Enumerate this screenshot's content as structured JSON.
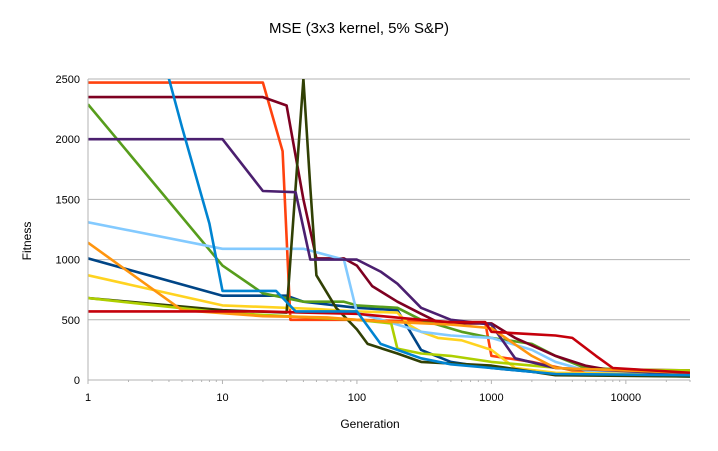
{
  "chart_data": {
    "type": "line",
    "title": "MSE (3x3 kernel, 5% S&P)",
    "xlabel": "Generation",
    "ylabel": "Fitness",
    "xscale": "log",
    "xlim": [
      1,
      30000
    ],
    "ylim": [
      0,
      2500
    ],
    "x_ticks": [
      1,
      10,
      100,
      1000,
      10000
    ],
    "x_tick_labels": [
      "1",
      "10",
      "100",
      "1000",
      "10000"
    ],
    "y_ticks": [
      0,
      500,
      1000,
      1500,
      2000,
      2500
    ],
    "y_tick_labels": [
      "0",
      "500",
      "1000",
      "1500",
      "2000",
      "2500"
    ],
    "grid": "horizontal",
    "legend": "none",
    "series": [
      {
        "color": "#004586",
        "points": [
          [
            1,
            1010
          ],
          [
            10,
            700
          ],
          [
            30,
            700
          ],
          [
            40,
            650
          ],
          [
            100,
            600
          ],
          [
            200,
            580
          ],
          [
            300,
            250
          ],
          [
            500,
            150
          ],
          [
            1000,
            100
          ],
          [
            3000,
            50
          ],
          [
            30000,
            30
          ]
        ]
      },
      {
        "color": "#ff420e",
        "points": [
          [
            1,
            2470
          ],
          [
            20,
            2470
          ],
          [
            28,
            1900
          ],
          [
            32,
            500
          ],
          [
            100,
            500
          ],
          [
            200,
            490
          ],
          [
            500,
            480
          ],
          [
            900,
            480
          ],
          [
            1000,
            200
          ],
          [
            2000,
            150
          ],
          [
            4000,
            80
          ],
          [
            10000,
            70
          ],
          [
            30000,
            60
          ]
        ]
      },
      {
        "color": "#ffd320",
        "points": [
          [
            1,
            870
          ],
          [
            10,
            620
          ],
          [
            50,
            590
          ],
          [
            100,
            570
          ],
          [
            200,
            560
          ],
          [
            250,
            450
          ],
          [
            300,
            400
          ],
          [
            400,
            350
          ],
          [
            600,
            330
          ],
          [
            1000,
            250
          ],
          [
            1500,
            100
          ],
          [
            3000,
            60
          ],
          [
            30000,
            50
          ]
        ]
      },
      {
        "color": "#579d1c",
        "points": [
          [
            1,
            2290
          ],
          [
            10,
            950
          ],
          [
            20,
            720
          ],
          [
            40,
            650
          ],
          [
            80,
            650
          ],
          [
            100,
            620
          ],
          [
            200,
            600
          ],
          [
            300,
            500
          ],
          [
            600,
            400
          ],
          [
            1000,
            350
          ],
          [
            2000,
            300
          ],
          [
            3000,
            200
          ],
          [
            5000,
            100
          ],
          [
            30000,
            70
          ]
        ]
      },
      {
        "color": "#7e0021",
        "points": [
          [
            1,
            2350
          ],
          [
            20,
            2350
          ],
          [
            30,
            2280
          ],
          [
            40,
            1500
          ],
          [
            50,
            1010
          ],
          [
            80,
            1010
          ],
          [
            100,
            950
          ],
          [
            130,
            780
          ],
          [
            200,
            650
          ],
          [
            300,
            550
          ],
          [
            400,
            480
          ],
          [
            700,
            470
          ],
          [
            1000,
            470
          ],
          [
            1500,
            350
          ],
          [
            3000,
            200
          ],
          [
            5000,
            120
          ],
          [
            7000,
            90
          ],
          [
            30000,
            80
          ]
        ]
      },
      {
        "color": "#83caff",
        "points": [
          [
            1,
            1310
          ],
          [
            10,
            1090
          ],
          [
            40,
            1090
          ],
          [
            80,
            1000
          ],
          [
            100,
            560
          ],
          [
            200,
            460
          ],
          [
            300,
            400
          ],
          [
            500,
            370
          ],
          [
            1000,
            350
          ],
          [
            2000,
            250
          ],
          [
            3000,
            150
          ],
          [
            5000,
            80
          ],
          [
            30000,
            60
          ]
        ]
      },
      {
        "color": "#314004",
        "points": [
          [
            1,
            680
          ],
          [
            10,
            580
          ],
          [
            30,
            560
          ],
          [
            40,
            2500
          ],
          [
            45,
            1600
          ],
          [
            50,
            870
          ],
          [
            70,
            600
          ],
          [
            100,
            420
          ],
          [
            120,
            300
          ],
          [
            200,
            220
          ],
          [
            300,
            150
          ],
          [
            1000,
            120
          ],
          [
            3000,
            40
          ],
          [
            30000,
            30
          ]
        ]
      },
      {
        "color": "#aecf00",
        "points": [
          [
            1,
            680
          ],
          [
            10,
            560
          ],
          [
            30,
            530
          ],
          [
            100,
            500
          ],
          [
            180,
            470
          ],
          [
            200,
            260
          ],
          [
            300,
            220
          ],
          [
            500,
            200
          ],
          [
            1000,
            150
          ],
          [
            2000,
            120
          ],
          [
            4000,
            90
          ],
          [
            30000,
            80
          ]
        ]
      },
      {
        "color": "#4b1f6f",
        "points": [
          [
            1,
            2000
          ],
          [
            10,
            2000
          ],
          [
            20,
            1570
          ],
          [
            35,
            1560
          ],
          [
            45,
            1000
          ],
          [
            100,
            1000
          ],
          [
            150,
            900
          ],
          [
            200,
            800
          ],
          [
            300,
            600
          ],
          [
            500,
            500
          ],
          [
            1000,
            460
          ],
          [
            1500,
            180
          ],
          [
            3000,
            100
          ],
          [
            30000,
            50
          ]
        ]
      },
      {
        "color": "#ff950e",
        "points": [
          [
            1,
            1140
          ],
          [
            5,
            580
          ],
          [
            20,
            530
          ],
          [
            60,
            520
          ],
          [
            100,
            500
          ],
          [
            200,
            480
          ],
          [
            500,
            460
          ],
          [
            800,
            440
          ],
          [
            1000,
            430
          ],
          [
            2000,
            200
          ],
          [
            3000,
            100
          ],
          [
            30000,
            60
          ]
        ]
      },
      {
        "color": "#c5000b",
        "points": [
          [
            1,
            570
          ],
          [
            20,
            570
          ],
          [
            40,
            560
          ],
          [
            100,
            550
          ],
          [
            300,
            500
          ],
          [
            500,
            480
          ],
          [
            900,
            480
          ],
          [
            1000,
            400
          ],
          [
            2000,
            380
          ],
          [
            3000,
            370
          ],
          [
            4000,
            350
          ],
          [
            6000,
            200
          ],
          [
            8000,
            100
          ],
          [
            30000,
            60
          ]
        ]
      },
      {
        "color": "#0084d1",
        "points": [
          [
            1,
            3500
          ],
          [
            4,
            2500
          ],
          [
            5,
            2100
          ],
          [
            8,
            1300
          ],
          [
            10,
            740
          ],
          [
            25,
            740
          ],
          [
            35,
            570
          ],
          [
            100,
            570
          ],
          [
            150,
            300
          ],
          [
            200,
            250
          ],
          [
            300,
            180
          ],
          [
            500,
            130
          ],
          [
            1000,
            100
          ],
          [
            3000,
            50
          ],
          [
            30000,
            40
          ]
        ]
      }
    ]
  }
}
